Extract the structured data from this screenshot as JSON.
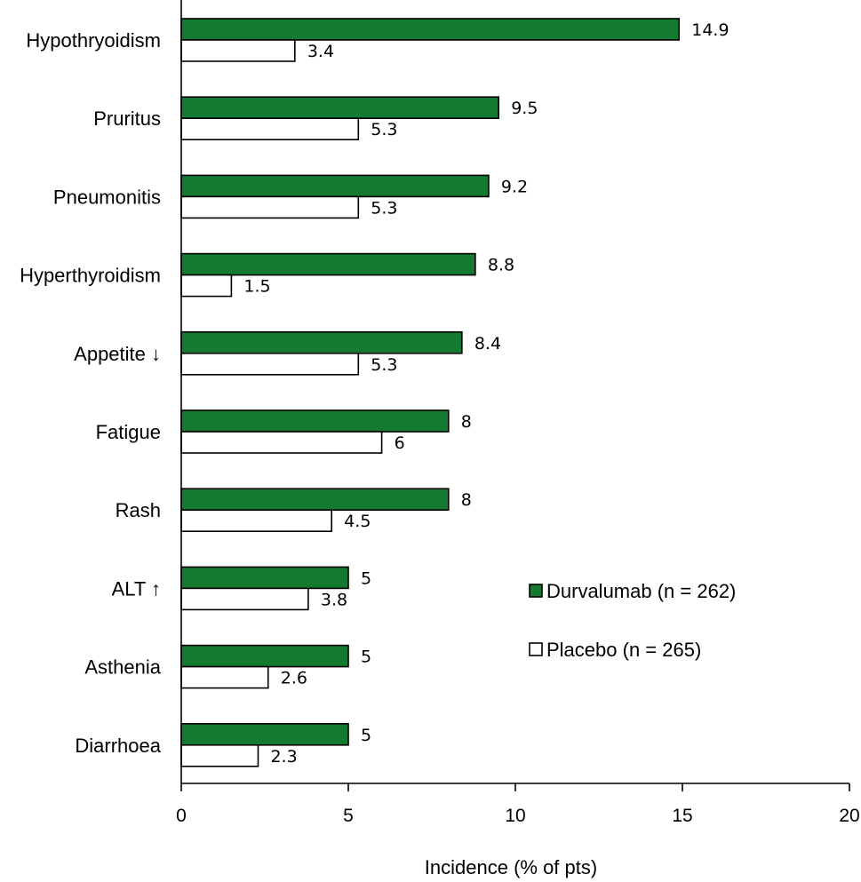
{
  "chart_data": {
    "type": "bar",
    "orientation": "horizontal",
    "categories": [
      "Hypothryoidism",
      "Pruritus",
      "Pneumonitis",
      "Hyperthyroidism",
      "Appetite ↓",
      "Fatigue",
      "Rash",
      "ALT ↑",
      "Asthenia",
      "Diarrhoea"
    ],
    "series": [
      {
        "name": "Durvalumab (n = 262)",
        "color": "#137a30",
        "values": [
          14.9,
          9.5,
          9.2,
          8.8,
          8.4,
          8,
          8,
          5,
          5,
          5
        ]
      },
      {
        "name": "Placebo (n = 265)",
        "color": "#ffffff",
        "values": [
          3.4,
          5.3,
          5.3,
          1.5,
          5.3,
          6,
          4.5,
          3.8,
          2.6,
          2.3
        ]
      }
    ],
    "xlabel": "Incidence (% of pts)",
    "ylabel": "",
    "xlim": [
      0,
      20
    ],
    "xticks": [
      0,
      5,
      10,
      15,
      20
    ],
    "grid": false,
    "legend_position": "bottom-right"
  }
}
